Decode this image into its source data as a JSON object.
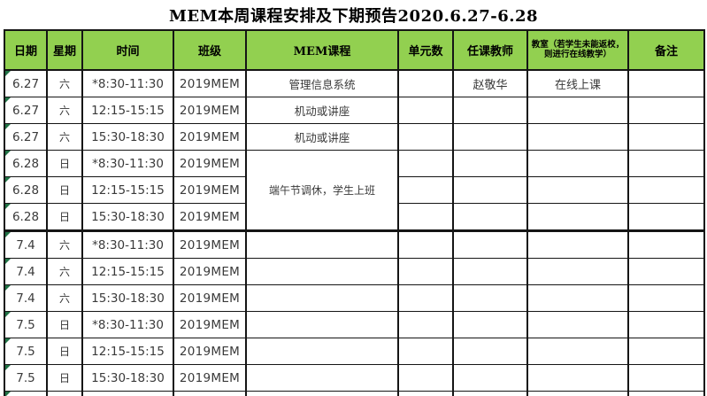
{
  "title": "MEM本周课程安排及下期预告2020.6.27-6.28",
  "colors": {
    "header_bg": "#92D050",
    "grid": "#151515",
    "error_triangle": "#217346"
  },
  "table": {
    "headers": [
      "日期",
      "星期",
      "时间",
      "班级",
      "MEM课程",
      "单元数",
      "任课教师",
      "教室（若学生未能返校，则进行在线教学）",
      "备注"
    ],
    "rows": [
      {
        "date": "6.27",
        "week": "六",
        "time": "*8:30-11:30",
        "class": "2019MEM",
        "course": "管理信息系统",
        "units": "",
        "teacher": "赵敬华",
        "room": "在线上课",
        "note": ""
      },
      {
        "date": "6.27",
        "week": "六",
        "time": "12:15-15:15",
        "class": "2019MEM",
        "course": "机动或讲座",
        "units": "",
        "teacher": "",
        "room": "",
        "note": ""
      },
      {
        "date": "6.27",
        "week": "六",
        "time": "15:30-18:30",
        "class": "2019MEM",
        "course": "机动或讲座",
        "units": "",
        "teacher": "",
        "room": "",
        "note": ""
      },
      {
        "date": "6.28",
        "week": "日",
        "time": "*8:30-11:30",
        "class": "2019MEM",
        "course": "端午节调休，学生上班",
        "course_rowspan": 3,
        "units": "",
        "teacher": "",
        "room": "",
        "note": ""
      },
      {
        "date": "6.28",
        "week": "日",
        "time": "12:15-15:15",
        "class": "2019MEM",
        "course": null,
        "units": "",
        "teacher": "",
        "room": "",
        "note": ""
      },
      {
        "date": "6.28",
        "week": "日",
        "time": "15:30-18:30",
        "class": "2019MEM",
        "course": null,
        "units": "",
        "teacher": "",
        "room": "",
        "note": ""
      },
      {
        "date": "7.4",
        "week": "六",
        "time": "*8:30-11:30",
        "class": "2019MEM",
        "course": "",
        "units": "",
        "teacher": "",
        "room": "",
        "note": "",
        "week_separator_above": true
      },
      {
        "date": "7.4",
        "week": "六",
        "time": "12:15-15:15",
        "class": "2019MEM",
        "course": "",
        "units": "",
        "teacher": "",
        "room": "",
        "note": ""
      },
      {
        "date": "7.4",
        "week": "六",
        "time": "15:30-18:30",
        "class": "2019MEM",
        "course": "",
        "units": "",
        "teacher": "",
        "room": "",
        "note": ""
      },
      {
        "date": "7.5",
        "week": "日",
        "time": "*8:30-11:30",
        "class": "2019MEM",
        "course": "",
        "units": "",
        "teacher": "",
        "room": "",
        "note": ""
      },
      {
        "date": "7.5",
        "week": "日",
        "time": "12:15-15:15",
        "class": "2019MEM",
        "course": "",
        "units": "",
        "teacher": "",
        "room": "",
        "note": ""
      },
      {
        "date": "7.5",
        "week": "日",
        "time": "15:30-18:30",
        "class": "2019MEM",
        "course": "",
        "units": "",
        "teacher": "",
        "room": "",
        "note": ""
      }
    ],
    "partial_row_visible": true
  }
}
